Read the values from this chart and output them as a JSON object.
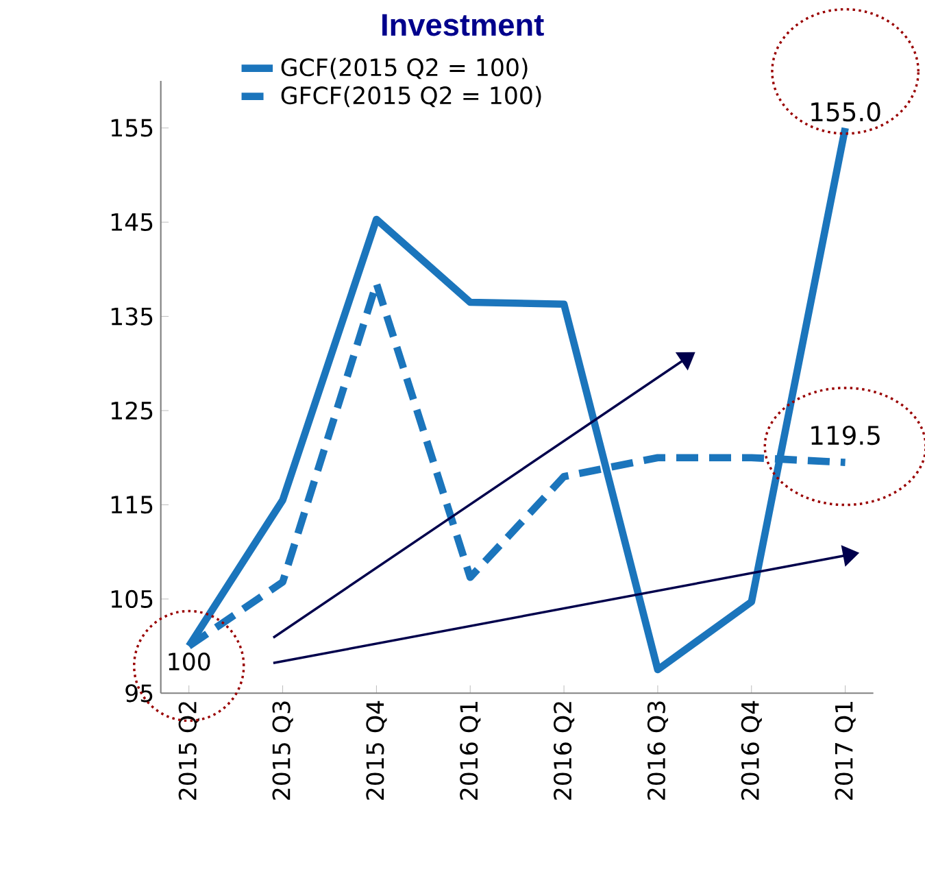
{
  "chart_data": {
    "type": "line",
    "title": "Investment",
    "categories": [
      "2015 Q2",
      "2015 Q3",
      "2015 Q4",
      "2016 Q1",
      "2016 Q2",
      "2016 Q3",
      "2016 Q4",
      "2017 Q1"
    ],
    "series": [
      {
        "name": "GCF(2015 Q2 = 100)",
        "color": "#1b75bc",
        "line_style": "solid",
        "values": [
          100,
          115.5,
          145.3,
          136.5,
          136.3,
          97.5,
          104.7,
          155.0
        ],
        "value_labels": [
          "100",
          null,
          null,
          null,
          null,
          null,
          null,
          "155.0"
        ]
      },
      {
        "name": "GFCF(2015 Q2 = 100)",
        "color": "#1b75bc",
        "line_style": "dashed",
        "values": [
          100,
          106.8,
          138.5,
          107.3,
          118,
          120,
          120,
          119.5
        ],
        "value_labels": [
          null,
          null,
          null,
          null,
          null,
          null,
          null,
          "119.5"
        ]
      }
    ],
    "ylim": [
      95,
      160
    ],
    "yticks": [
      95,
      105,
      115,
      125,
      135,
      145,
      155
    ],
    "grid": false,
    "legend": "top left",
    "marker": "none"
  }
}
